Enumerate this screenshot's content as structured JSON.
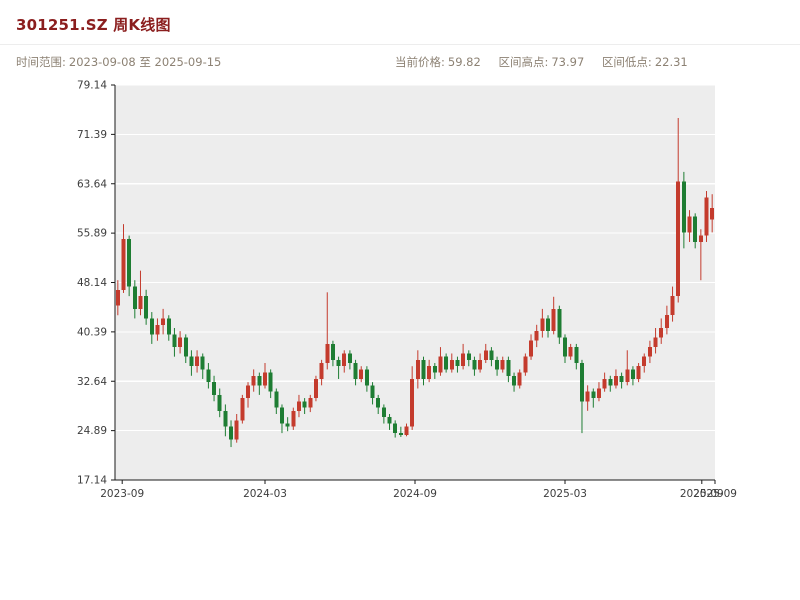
{
  "header": {
    "title": "301251.SZ 周K线图",
    "time_range_label": "时间范围:",
    "time_range_value": "2023-09-08 至 2025-09-15",
    "stats": [
      {
        "label": "当前价格:",
        "value": "59.82"
      },
      {
        "label": "区间高点:",
        "value": "73.97"
      },
      {
        "label": "区间低点:",
        "value": "22.31"
      }
    ]
  },
  "chart_data": {
    "type": "candlestick",
    "title": "301251.SZ 周K线图",
    "period": "weekly",
    "ylim": [
      17.14,
      79.14
    ],
    "y_ticks": [
      79.14,
      71.39,
      63.64,
      55.89,
      48.14,
      40.39,
      32.64,
      24.89,
      17.14
    ],
    "x_ticks": [
      {
        "label": "2023-09",
        "f": 0.012
      },
      {
        "label": "2024-03",
        "f": 0.25
      },
      {
        "label": "2024-09",
        "f": 0.5
      },
      {
        "label": "2025-03",
        "f": 0.75
      },
      {
        "label": "2025-09",
        "f": 0.978
      },
      {
        "label": "2025-09",
        "f": 1.0
      }
    ],
    "colors": {
      "up": "#c43b2d",
      "down": "#1e7d33",
      "plot_bg": "#ededed",
      "grid": "#ffffff",
      "spine": "#1a1a1a",
      "title": "#8b1e1e",
      "subtitle": "#8d8274"
    },
    "legend": "red = up week, green = down week",
    "candles": [
      [
        44.5,
        48.5,
        43.0,
        47.0
      ],
      [
        47.0,
        57.3,
        46.5,
        55.0
      ],
      [
        55.0,
        55.5,
        46.0,
        47.5
      ],
      [
        47.5,
        48.5,
        42.5,
        44.0
      ],
      [
        44.0,
        50.0,
        43.0,
        46.0
      ],
      [
        46.0,
        47.0,
        41.5,
        42.5
      ],
      [
        42.5,
        43.5,
        38.5,
        40.0
      ],
      [
        40.0,
        42.5,
        39.0,
        41.5
      ],
      [
        41.5,
        44.0,
        40.0,
        42.5
      ],
      [
        42.5,
        43.0,
        39.0,
        40.0
      ],
      [
        40.0,
        41.0,
        36.5,
        38.0
      ],
      [
        38.0,
        40.5,
        37.0,
        39.5
      ],
      [
        39.5,
        40.0,
        35.5,
        36.5
      ],
      [
        36.5,
        37.5,
        33.5,
        35.0
      ],
      [
        35.0,
        37.5,
        34.0,
        36.5
      ],
      [
        36.5,
        37.0,
        33.0,
        34.5
      ],
      [
        34.5,
        35.5,
        31.5,
        32.5
      ],
      [
        32.5,
        33.5,
        29.5,
        30.5
      ],
      [
        30.5,
        31.5,
        27.0,
        28.0
      ],
      [
        28.0,
        29.0,
        24.0,
        25.5
      ],
      [
        25.5,
        26.5,
        22.31,
        23.5
      ],
      [
        23.5,
        27.5,
        23.0,
        26.5
      ],
      [
        26.5,
        30.5,
        26.0,
        30.0
      ],
      [
        30.0,
        32.5,
        28.5,
        32.0
      ],
      [
        32.0,
        34.5,
        31.0,
        33.5
      ],
      [
        33.5,
        34.0,
        30.5,
        32.0
      ],
      [
        32.0,
        35.5,
        31.5,
        34.0
      ],
      [
        34.0,
        34.5,
        30.0,
        31.0
      ],
      [
        31.0,
        31.5,
        27.5,
        28.5
      ],
      [
        28.5,
        29.0,
        24.5,
        26.0
      ],
      [
        26.0,
        27.0,
        24.8,
        25.5
      ],
      [
        25.5,
        28.5,
        25.0,
        28.0
      ],
      [
        28.0,
        30.5,
        27.0,
        29.5
      ],
      [
        29.5,
        30.0,
        27.5,
        28.5
      ],
      [
        28.5,
        30.5,
        27.8,
        30.0
      ],
      [
        30.0,
        33.5,
        29.5,
        33.0
      ],
      [
        33.0,
        36.0,
        32.0,
        35.5
      ],
      [
        35.5,
        46.6,
        34.5,
        38.5
      ],
      [
        38.5,
        39.0,
        35.0,
        36.0
      ],
      [
        36.0,
        36.5,
        33.0,
        35.0
      ],
      [
        35.0,
        37.5,
        34.0,
        37.0
      ],
      [
        37.0,
        37.5,
        34.5,
        35.5
      ],
      [
        35.5,
        36.0,
        32.0,
        33.0
      ],
      [
        33.0,
        35.0,
        32.5,
        34.5
      ],
      [
        34.5,
        35.0,
        31.0,
        32.0
      ],
      [
        32.0,
        32.5,
        29.0,
        30.0
      ],
      [
        30.0,
        30.5,
        27.5,
        28.5
      ],
      [
        28.5,
        29.0,
        26.0,
        27.0
      ],
      [
        27.0,
        27.5,
        25.0,
        26.0
      ],
      [
        26.0,
        26.5,
        23.8,
        24.5
      ],
      [
        24.5,
        25.5,
        23.9,
        24.2
      ],
      [
        24.2,
        26.0,
        24.0,
        25.5
      ],
      [
        25.5,
        35.0,
        25.0,
        33.0
      ],
      [
        33.0,
        37.5,
        31.5,
        36.0
      ],
      [
        36.0,
        36.5,
        32.0,
        33.0
      ],
      [
        33.0,
        36.0,
        32.5,
        35.0
      ],
      [
        35.0,
        35.5,
        33.0,
        34.0
      ],
      [
        34.0,
        38.0,
        33.5,
        36.5
      ],
      [
        36.5,
        37.0,
        34.0,
        34.5
      ],
      [
        34.5,
        37.0,
        34.0,
        36.0
      ],
      [
        36.0,
        36.5,
        34.0,
        35.0
      ],
      [
        35.0,
        38.5,
        34.5,
        37.0
      ],
      [
        37.0,
        37.5,
        35.0,
        36.0
      ],
      [
        36.0,
        36.5,
        33.5,
        34.5
      ],
      [
        34.5,
        37.0,
        34.0,
        36.0
      ],
      [
        36.0,
        38.5,
        35.5,
        37.5
      ],
      [
        37.5,
        38.0,
        35.0,
        36.0
      ],
      [
        36.0,
        36.5,
        33.5,
        34.5
      ],
      [
        34.5,
        36.5,
        34.0,
        36.0
      ],
      [
        36.0,
        36.5,
        32.5,
        33.5
      ],
      [
        33.5,
        34.0,
        31.0,
        32.0
      ],
      [
        32.0,
        34.5,
        31.5,
        34.0
      ],
      [
        34.0,
        37.0,
        33.5,
        36.5
      ],
      [
        36.5,
        40.0,
        36.0,
        39.0
      ],
      [
        39.0,
        41.5,
        38.0,
        40.5
      ],
      [
        40.5,
        44.0,
        39.5,
        42.5
      ],
      [
        42.5,
        43.0,
        39.5,
        40.5
      ],
      [
        40.5,
        45.9,
        40.0,
        44.0
      ],
      [
        44.0,
        44.5,
        38.5,
        39.5
      ],
      [
        39.5,
        40.0,
        35.5,
        36.5
      ],
      [
        36.5,
        38.5,
        36.0,
        38.0
      ],
      [
        38.0,
        38.5,
        34.5,
        35.5
      ],
      [
        35.5,
        36.0,
        24.5,
        29.5
      ],
      [
        29.5,
        32.0,
        28.0,
        31.0
      ],
      [
        31.0,
        31.5,
        28.5,
        30.0
      ],
      [
        30.0,
        32.5,
        29.5,
        31.5
      ],
      [
        31.5,
        34.0,
        31.0,
        33.0
      ],
      [
        33.0,
        33.5,
        31.0,
        32.0
      ],
      [
        32.0,
        34.5,
        31.5,
        33.5
      ],
      [
        33.5,
        34.0,
        31.5,
        32.5
      ],
      [
        32.5,
        37.5,
        32.0,
        34.5
      ],
      [
        34.5,
        35.0,
        32.0,
        33.0
      ],
      [
        33.0,
        35.5,
        32.5,
        35.0
      ],
      [
        35.0,
        37.0,
        34.0,
        36.5
      ],
      [
        36.5,
        39.0,
        35.5,
        38.0
      ],
      [
        38.0,
        41.0,
        37.0,
        39.5
      ],
      [
        39.5,
        42.5,
        38.5,
        41.0
      ],
      [
        41.0,
        44.5,
        40.0,
        43.0
      ],
      [
        43.0,
        47.5,
        42.0,
        46.0
      ],
      [
        46.0,
        73.97,
        45.0,
        64.0
      ],
      [
        64.0,
        65.5,
        53.5,
        56.0
      ],
      [
        56.0,
        59.5,
        54.5,
        58.5
      ],
      [
        58.5,
        59.0,
        53.5,
        54.5
      ],
      [
        54.5,
        56.5,
        48.5,
        55.5
      ],
      [
        55.5,
        62.5,
        54.5,
        61.5
      ],
      [
        58.0,
        62.0,
        56.0,
        59.82
      ]
    ]
  }
}
